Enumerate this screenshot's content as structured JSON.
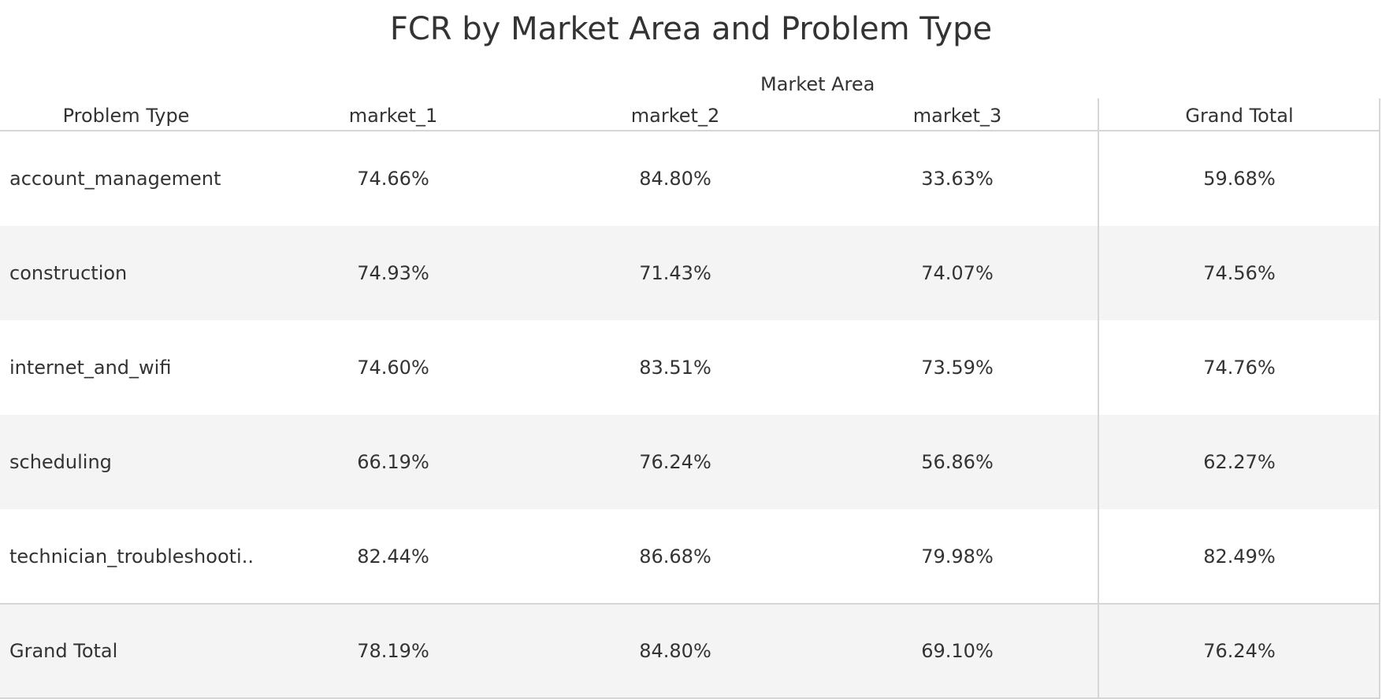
{
  "chart_data": {
    "type": "table",
    "title": "FCR by Market Area and Problem Type",
    "column_group_label": "Market Area",
    "row_header_label": "Problem Type",
    "columns": [
      "market_1",
      "market_2",
      "market_3",
      "Grand Total"
    ],
    "rows": [
      {
        "label": "account_management",
        "values": [
          "74.66%",
          "84.80%",
          "33.63%",
          "59.68%"
        ]
      },
      {
        "label": "construction",
        "values": [
          "74.93%",
          "71.43%",
          "74.07%",
          "74.56%"
        ]
      },
      {
        "label": "internet_and_wifi",
        "values": [
          "74.60%",
          "83.51%",
          "73.59%",
          "74.76%"
        ]
      },
      {
        "label": "scheduling",
        "values": [
          "66.19%",
          "76.24%",
          "56.86%",
          "62.27%"
        ]
      },
      {
        "label": "technician_troubleshooti..",
        "values": [
          "82.44%",
          "86.68%",
          "79.98%",
          "82.49%"
        ]
      },
      {
        "label": "Grand Total",
        "values": [
          "78.19%",
          "84.80%",
          "69.10%",
          "76.24%"
        ]
      }
    ]
  },
  "colors": {
    "row_shade": "#f4f4f4",
    "gridline": "#d6d6d6",
    "text": "#333333"
  }
}
